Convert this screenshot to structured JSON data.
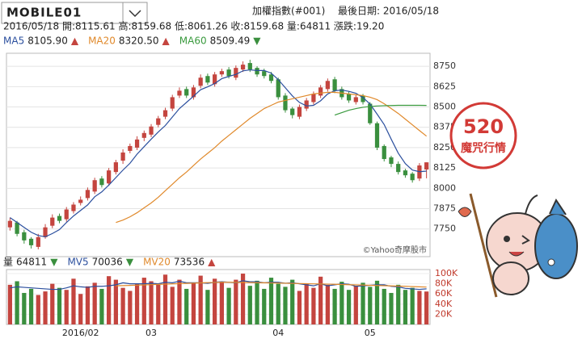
{
  "logo": "MOBILE01",
  "badge": {
    "number": "520",
    "text": "魔咒行情"
  },
  "chart_data": {
    "type": "candlestick",
    "title": "加權指數(#001)",
    "subtitle": "最後日期: 2016/05/18",
    "quote": "2016/05/18 開:8115.61 高:8159.68 低:8061.26 收:8159.68 量:64811 漲跌:19.20",
    "source": "©Yahoo奇摩股市",
    "up_color": "#c4453f",
    "down_color": "#3a8f3e",
    "categories": [
      null,
      null,
      null,
      null,
      null,
      null,
      null,
      null,
      null,
      null,
      "2016/02",
      null,
      null,
      null,
      null,
      null,
      null,
      null,
      null,
      null,
      "03",
      null,
      null,
      null,
      null,
      null,
      null,
      null,
      null,
      null,
      null,
      null,
      null,
      null,
      null,
      null,
      null,
      null,
      "04",
      null,
      null,
      null,
      null,
      null,
      null,
      null,
      null,
      null,
      null,
      null,
      null,
      "05",
      null,
      null,
      null,
      null,
      null,
      null,
      null,
      null
    ],
    "open": [
      7760,
      7790,
      7730,
      7690,
      7640,
      7700,
      7770,
      7830,
      7810,
      7860,
      7910,
      7940,
      7980,
      8060,
      8030,
      8100,
      8170,
      8230,
      8250,
      8310,
      8330,
      8390,
      8440,
      8490,
      8570,
      8610,
      8560,
      8630,
      8690,
      8640,
      8700,
      8730,
      8680,
      8730,
      8770,
      8740,
      8720,
      8700,
      8670,
      8570,
      8490,
      8440,
      8490,
      8530,
      8570,
      8610,
      8670,
      8610,
      8580,
      8530,
      8570,
      8520,
      8400,
      8260,
      8190,
      8150,
      8110,
      8090,
      8060,
      8115.61
    ],
    "high": [
      7820,
      7800,
      7745,
      7700,
      7720,
      7780,
      7840,
      7845,
      7885,
      7915,
      7950,
      8005,
      8065,
      8075,
      8125,
      8175,
      8240,
      8275,
      8320,
      8355,
      8395,
      8445,
      8495,
      8575,
      8620,
      8625,
      8635,
      8700,
      8705,
      8715,
      8735,
      8745,
      8755,
      8780,
      8790,
      8750,
      8735,
      8715,
      8680,
      8585,
      8500,
      8515,
      8555,
      8595,
      8635,
      8675,
      8685,
      8625,
      8595,
      8575,
      8580,
      8530,
      8410,
      8270,
      8200,
      8165,
      8120,
      8100,
      8155,
      8159.68
    ],
    "low": [
      7740,
      7705,
      7660,
      7630,
      7625,
      7690,
      7755,
      7785,
      7795,
      7845,
      7895,
      7925,
      7965,
      8005,
      8015,
      8085,
      8150,
      8215,
      8235,
      8290,
      8315,
      8375,
      8425,
      8475,
      8555,
      8555,
      8545,
      8615,
      8635,
      8625,
      8685,
      8675,
      8665,
      8715,
      8715,
      8685,
      8675,
      8645,
      8545,
      8465,
      8430,
      8425,
      8475,
      8515,
      8555,
      8595,
      8585,
      8545,
      8525,
      8515,
      8515,
      8390,
      8235,
      8165,
      8130,
      8085,
      8065,
      8035,
      8045,
      8061.26
    ],
    "close": [
      7800,
      7720,
      7680,
      7650,
      7700,
      7760,
      7820,
      7800,
      7870,
      7900,
      7930,
      7990,
      8050,
      8020,
      8110,
      8160,
      8220,
      8260,
      8300,
      8340,
      8380,
      8430,
      8480,
      8560,
      8600,
      8570,
      8620,
      8680,
      8650,
      8700,
      8720,
      8690,
      8740,
      8760,
      8730,
      8700,
      8690,
      8660,
      8560,
      8480,
      8450,
      8500,
      8540,
      8580,
      8620,
      8660,
      8600,
      8560,
      8540,
      8560,
      8530,
      8400,
      8250,
      8180,
      8150,
      8100,
      8080,
      8050,
      8140.48,
      8159.68
    ],
    "series": [
      {
        "name": "MA5",
        "value_label": "8105.90",
        "trend": "▲",
        "color": "#2b4f9e",
        "values": [
          7820,
          7790,
          7760,
          7730,
          7710,
          7702,
          7722,
          7746,
          7790,
          7830,
          7864,
          7898,
          7948,
          7978,
          8020,
          8066,
          8112,
          8154,
          8210,
          8256,
          8302,
          8346,
          8386,
          8438,
          8490,
          8528,
          8566,
          8606,
          8624,
          8644,
          8674,
          8688,
          8700,
          8722,
          8728,
          8724,
          8724,
          8708,
          8668,
          8618,
          8568,
          8528,
          8506,
          8510,
          8538,
          8580,
          8600,
          8604,
          8596,
          8584,
          8558,
          8518,
          8456,
          8392,
          8302,
          8216,
          8152,
          8112,
          8102,
          8105.9
        ]
      },
      {
        "name": "MA20",
        "value_label": "8320.50",
        "trend": "▲",
        "color": "#e0892b",
        "values": [
          null,
          null,
          null,
          null,
          null,
          null,
          null,
          null,
          null,
          null,
          null,
          null,
          null,
          null,
          null,
          7790,
          7805,
          7825,
          7850,
          7880,
          7910,
          7945,
          7985,
          8025,
          8065,
          8100,
          8140,
          8180,
          8215,
          8250,
          8290,
          8325,
          8360,
          8395,
          8430,
          8460,
          8490,
          8510,
          8530,
          8540,
          8550,
          8560,
          8570,
          8580,
          8585,
          8590,
          8590,
          8585,
          8580,
          8575,
          8570,
          8560,
          8545,
          8520,
          8490,
          8460,
          8425,
          8390,
          8355,
          8320.5
        ]
      },
      {
        "name": "MA60",
        "value_label": "8509.49",
        "trend": "▼",
        "color": "#3a9a3e",
        "values": [
          null,
          null,
          null,
          null,
          null,
          null,
          null,
          null,
          null,
          null,
          null,
          null,
          null,
          null,
          null,
          null,
          null,
          null,
          null,
          null,
          null,
          null,
          null,
          null,
          null,
          null,
          null,
          null,
          null,
          null,
          null,
          null,
          null,
          null,
          null,
          null,
          null,
          null,
          null,
          null,
          null,
          null,
          null,
          null,
          null,
          null,
          8450,
          8465,
          8480,
          8490,
          8498,
          8503,
          8506,
          8508,
          8509,
          8510,
          8510,
          8510,
          8510,
          8509.49
        ]
      }
    ],
    "ylim": [
      7580,
      8830
    ],
    "yticks": [
      7750,
      7875,
      8000,
      8125,
      8250,
      8375,
      8500,
      8625,
      8750
    ],
    "volume": {
      "name": "量",
      "value_label": "64811",
      "trend": "▼",
      "values": [
        78000,
        85000,
        62000,
        70000,
        58000,
        65000,
        80000,
        72000,
        68000,
        90000,
        60000,
        75000,
        82000,
        70000,
        95000,
        88000,
        72000,
        66000,
        80000,
        92000,
        85000,
        78000,
        98000,
        74000,
        88000,
        70000,
        82000,
        96000,
        68000,
        90000,
        84000,
        72000,
        88000,
        100000,
        76000,
        86000,
        70000,
        92000,
        80000,
        74000,
        88000,
        66000,
        80000,
        72000,
        94000,
        78000,
        70000,
        84000,
        68000,
        76000,
        82000,
        74000,
        86000,
        70000,
        62000,
        78000,
        68000,
        72000,
        66000,
        64811
      ],
      "series": [
        {
          "name": "MV5",
          "value_label": "70036",
          "trend": "▼",
          "color": "#2b4f9e",
          "values": [
            72000,
            74000,
            73000,
            72000,
            71000,
            70000,
            69000,
            69000,
            72000,
            76000,
            74000,
            73000,
            75000,
            75000,
            76000,
            78000,
            82000,
            80000,
            80000,
            80000,
            81000,
            80000,
            83000,
            82000,
            85000,
            82000,
            82000,
            82000,
            81000,
            83000,
            84000,
            83000,
            82000,
            86000,
            84000,
            84000,
            82000,
            83000,
            83000,
            81000,
            82000,
            80000,
            78000,
            76000,
            80000,
            76000,
            78000,
            80000,
            79000,
            75000,
            76000,
            77000,
            78000,
            78000,
            75000,
            74000,
            71000,
            70000,
            69000,
            70036
          ]
        },
        {
          "name": "MV20",
          "value_label": "73536",
          "trend": "▲",
          "color": "#e0892b",
          "values": [
            null,
            null,
            null,
            null,
            null,
            null,
            null,
            null,
            null,
            null,
            null,
            null,
            null,
            null,
            null,
            76000,
            76400,
            76800,
            77300,
            77800,
            78300,
            78800,
            79300,
            79800,
            80300,
            80800,
            81300,
            81800,
            82300,
            82700,
            83000,
            83000,
            82800,
            82600,
            82400,
            82200,
            82000,
            81700,
            81400,
            81100,
            80800,
            80500,
            80200,
            79900,
            79600,
            79300,
            79000,
            78600,
            78200,
            77800,
            77400,
            77000,
            76600,
            76200,
            75800,
            75400,
            75000,
            74500,
            74000,
            73536
          ]
        }
      ],
      "ylim": [
        0,
        108000
      ],
      "yticks": [
        {
          "value": 20000,
          "label": "20K"
        },
        {
          "value": 40000,
          "label": "40K"
        },
        {
          "value": 60000,
          "label": "60K"
        },
        {
          "value": 80000,
          "label": "80K"
        },
        {
          "value": 100000,
          "label": "100K"
        }
      ]
    }
  }
}
